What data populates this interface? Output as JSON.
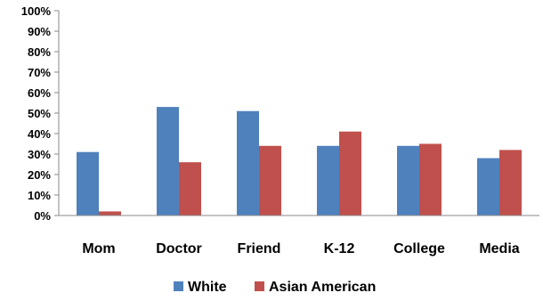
{
  "chart_data": {
    "type": "bar",
    "title": "",
    "xlabel": "",
    "ylabel": "",
    "categories": [
      "Mom",
      "Doctor",
      "Friend",
      "K-12",
      "College",
      "Media"
    ],
    "series": [
      {
        "name": "White",
        "color": "#4F81BD",
        "values": [
          31,
          53,
          51,
          34,
          34,
          28
        ]
      },
      {
        "name": "Asian American",
        "color": "#C0504D",
        "values": [
          2,
          26,
          34,
          41,
          35,
          32
        ]
      }
    ],
    "ylim": [
      0,
      100
    ],
    "y_ticks": [
      "0%",
      "10%",
      "20%",
      "30%",
      "40%",
      "50%",
      "60%",
      "70%",
      "80%",
      "90%",
      "100%"
    ],
    "grid": false,
    "legend_position": "bottom"
  }
}
